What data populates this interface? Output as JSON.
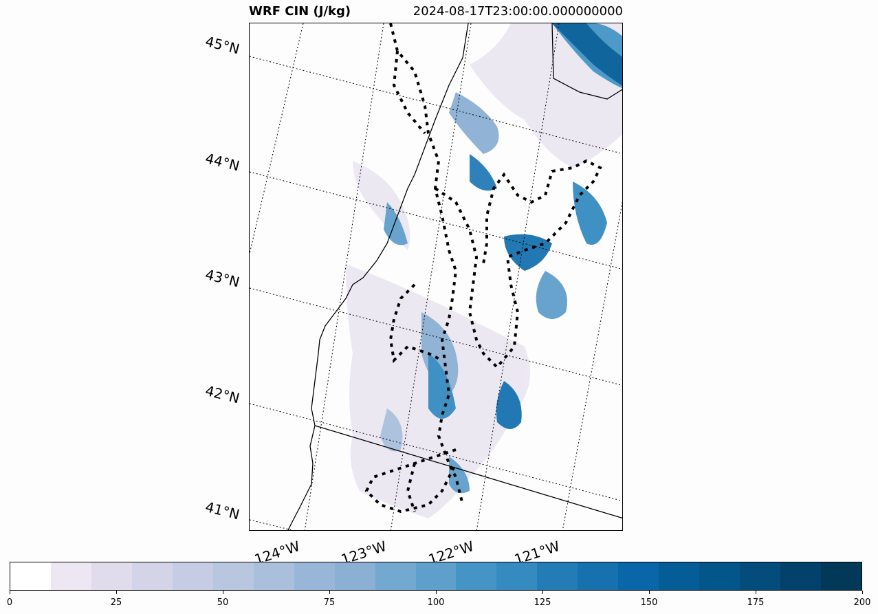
{
  "title": {
    "variable": "WRF CIN (J/kg)",
    "time": "2024-08-17T23:00:00.000000000"
  },
  "map": {
    "lat_labels": [
      "45°N",
      "44°N",
      "43°N",
      "42°N",
      "41°N"
    ],
    "lon_labels": [
      "124°W",
      "123°W",
      "122°W",
      "121°W"
    ]
  },
  "colorbar": {
    "min": 0,
    "max": 200,
    "ticks": [
      "0",
      "25",
      "50",
      "75",
      "100",
      "125",
      "150",
      "175",
      "200"
    ],
    "colors": [
      "#ffffff",
      "#ece7f2",
      "#e0dcec",
      "#d4d4e8",
      "#c6cce4",
      "#b8c6e0",
      "#a9bfdc",
      "#97b6d8",
      "#8bb0d4",
      "#73a8cf",
      "#5f9fcb",
      "#4495c6",
      "#358bc0",
      "#237cb6",
      "#1671ae",
      "#0967a9",
      "#045d97",
      "#03568a",
      "#034c7b",
      "#02416c",
      "#023858"
    ]
  },
  "colors": {
    "accent": "#0967a9",
    "border": "#000000"
  }
}
